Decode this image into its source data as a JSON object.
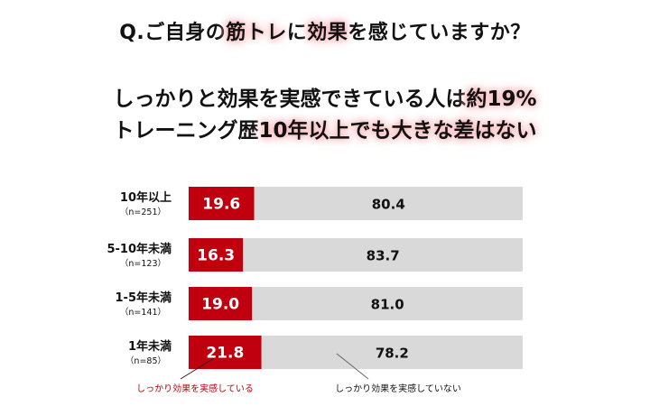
{
  "question": {
    "prefix": "Q.ご自身の",
    "highlight1": "筋トレ",
    "middle": "に",
    "highlight2": "効果",
    "suffix": "を感じていますか？"
  },
  "headline": {
    "line1_a": "しっかりと効果を実感できている人は",
    "line1_b": "約19%",
    "line2_a": "トレーニング歴",
    "line2_b": "10年以上でも大きな差はない"
  },
  "colors": {
    "accent": "#c0000e",
    "rest": "#d9d9d9",
    "glow": "#f6b4b8"
  },
  "chart_data": {
    "type": "bar",
    "orientation": "horizontal",
    "stacked": true,
    "percent_scale": [
      0,
      100
    ],
    "categories": [
      "10年以上",
      "5-10年未満",
      "1-5年未満",
      "1年未満"
    ],
    "sample_sizes": [
      "（n=251）",
      "（n=123）",
      "（n=141）",
      "（n=85）"
    ],
    "series": [
      {
        "name": "しっかり効果を実感している",
        "values": [
          19.6,
          16.3,
          19.0,
          21.8
        ],
        "color": "#c0000e"
      },
      {
        "name": "しっかり効果を実感していない",
        "values": [
          80.4,
          83.7,
          81.0,
          78.2
        ],
        "color": "#d9d9d9"
      }
    ],
    "legend": "bottom, callout lines"
  }
}
